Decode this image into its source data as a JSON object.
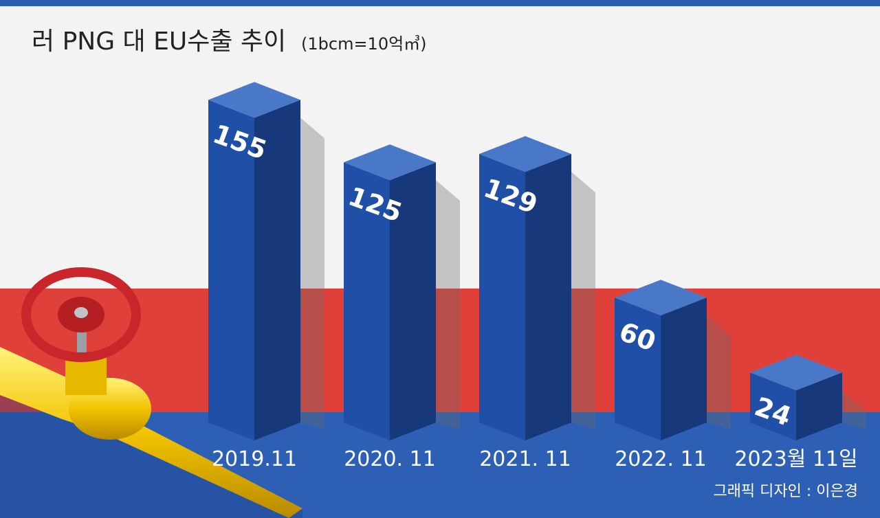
{
  "chart_data": {
    "type": "bar3d",
    "title": "러 PNG 대 EU수출 추이",
    "subtitle": "(1bcm=10억㎥)",
    "categories": [
      "2019.11",
      "2020. 11",
      "2021. 11",
      "2022. 11",
      "2023월 11일"
    ],
    "values": [
      155,
      125,
      129,
      60,
      24
    ],
    "color": "#1f4fa6",
    "credit": "그래픽 디자인 : 이은경"
  }
}
